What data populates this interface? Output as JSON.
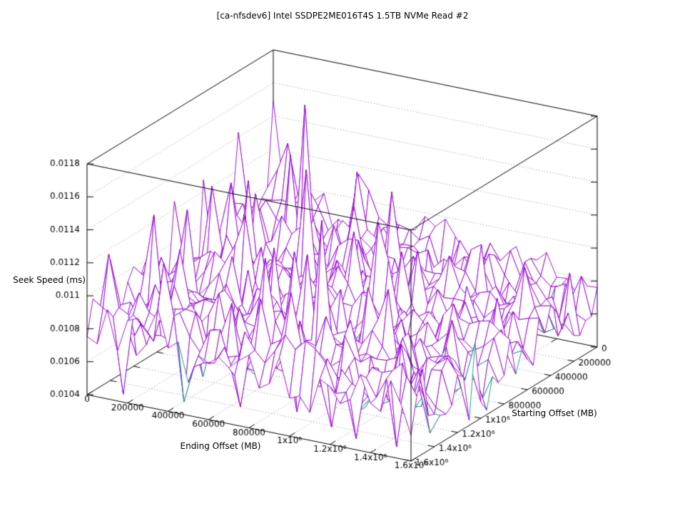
{
  "page": {
    "background": "#ffffff"
  },
  "chart_data": {
    "type": "surface3d",
    "title": "[ca-nfsdev6] Intel SSDPE2ME016T4S 1.5TB NVMe Read #2",
    "xlabel": "Ending Offset (MB)",
    "ylabel": "Starting Offset (MB)",
    "zlabel": "Seek Speed (ms)",
    "x_range": [
      0,
      1600000
    ],
    "y_range": [
      0,
      1600000
    ],
    "z_range": [
      0.0104,
      0.0118
    ],
    "x_ticks": [
      0,
      200000,
      400000,
      600000,
      800000,
      1000000,
      1200000,
      1400000,
      1600000
    ],
    "y_ticks": [
      0,
      200000,
      400000,
      600000,
      800000,
      1000000,
      1200000,
      1400000,
      1600000
    ],
    "z_ticks": [
      0.0104,
      0.0106,
      0.0108,
      0.011,
      0.0112,
      0.0114,
      0.0116,
      0.0118
    ],
    "x_tick_labels": [
      "0",
      "200000",
      "400000",
      "600000",
      "800000",
      "1x10⁶",
      "1.2x10⁶",
      "1.4x10⁶",
      "1.6x10⁶"
    ],
    "y_tick_labels": [
      "0",
      "200000",
      "400000",
      "600000",
      "800000",
      "1x10⁶",
      "1.2x10⁶",
      "1.4x10⁶",
      "1.6x10⁶"
    ],
    "z_tick_labels": [
      "0.0104",
      "0.0106",
      "0.0108",
      "0.011",
      "0.0112",
      "0.0114",
      "0.0116",
      "0.0118"
    ],
    "grid_on": true,
    "legend": "none",
    "grid_cells": 32,
    "surface": {
      "seed": 7,
      "base_level": 0.01063,
      "far_bias": 0.00014,
      "left_bias": 0.00012,
      "noise_amp": 0.00011,
      "spike_probability": 0.06,
      "spike_min": 0.00012,
      "spike_max": 0.00075,
      "z_min_clamp": 0.01041,
      "z_max_clamp": 0.01175,
      "major_spikes": [
        [
          6,
          5,
          0.01165
        ],
        [
          4,
          4,
          0.0113
        ],
        [
          1,
          9,
          0.0112
        ],
        [
          0,
          6,
          0.0111
        ],
        [
          9,
          10,
          0.0114
        ],
        [
          5,
          13,
          0.01135
        ],
        [
          2,
          14,
          0.0113
        ],
        [
          10,
          3,
          0.01125
        ],
        [
          12,
          7,
          0.01115
        ],
        [
          3,
          20,
          0.0113
        ],
        [
          7,
          17,
          0.01125
        ],
        [
          16,
          14,
          0.0112
        ],
        [
          13,
          19,
          0.01115
        ],
        [
          20,
          15,
          0.0111
        ],
        [
          18,
          22,
          0.011
        ],
        [
          22,
          8,
          0.011
        ],
        [
          24,
          6,
          0.01105
        ],
        [
          26,
          12,
          0.01095
        ],
        [
          29,
          7,
          0.01095
        ],
        [
          31,
          3,
          0.0109
        ],
        [
          28,
          18,
          0.0109
        ],
        [
          6,
          24,
          0.01085
        ],
        [
          15,
          27,
          0.0108
        ],
        [
          25,
          24,
          0.01075
        ],
        [
          11,
          30,
          0.01078
        ],
        [
          2,
          28,
          0.0109
        ],
        [
          8,
          21,
          0.0111
        ],
        [
          14,
          4,
          0.0112
        ],
        [
          19,
          11,
          0.01105
        ],
        [
          17,
          18,
          0.01095
        ]
      ],
      "dips": [
        [
          3,
          31,
          0.01042
        ],
        [
          9,
          31,
          0.01045
        ],
        [
          14,
          30,
          0.01046
        ],
        [
          19,
          29,
          0.01047
        ],
        [
          23,
          30,
          0.01045
        ],
        [
          26,
          31,
          0.01044
        ],
        [
          30,
          31,
          0.01044
        ],
        [
          32,
          22,
          0.01043
        ],
        [
          31,
          27,
          0.01045
        ],
        [
          31,
          18,
          0.01046
        ],
        [
          8,
          26,
          0.01048
        ],
        [
          27,
          21,
          0.01049
        ]
      ]
    },
    "colors": {
      "surface_top": "#9400d3",
      "surface_bottom": "#009e73",
      "border": "#000000",
      "grid": "#8c8c8c",
      "background": "#ffffff",
      "text": "#000000"
    }
  }
}
